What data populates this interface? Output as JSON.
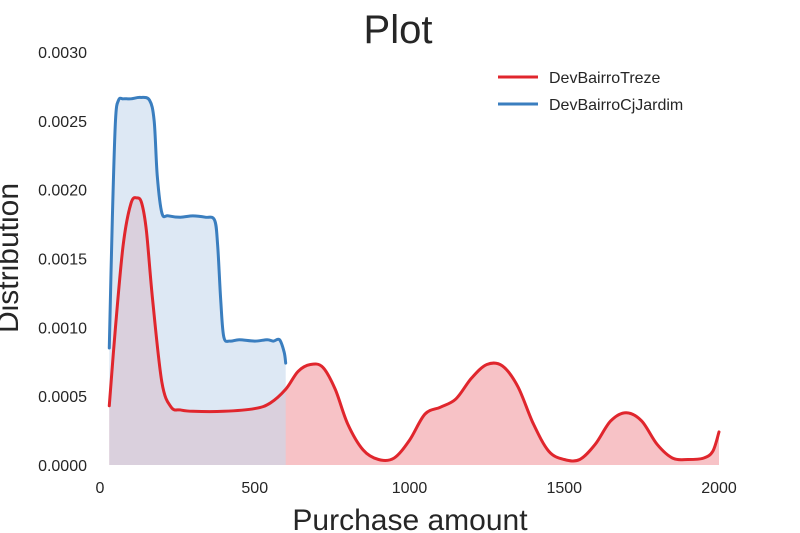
{
  "chart_data": {
    "type": "area",
    "title": "Plot",
    "xlabel": "Purchase amount",
    "ylabel": "Distribution",
    "xlim": [
      0,
      2000
    ],
    "ylim": [
      0,
      0.003
    ],
    "x_ticks": [
      0,
      500,
      1000,
      1500,
      2000
    ],
    "x_tick_labels": [
      "0",
      "500",
      "1000",
      "1500",
      "2000"
    ],
    "y_ticks": [
      0,
      0.0005,
      0.001,
      0.0015,
      0.002,
      0.0025,
      0.003
    ],
    "y_tick_labels": [
      "0.0000",
      "0.0005",
      "0.0010",
      "0.0015",
      "0.0020",
      "0.0025",
      "0.0030"
    ],
    "grid": false,
    "legend_position": "top-right",
    "series": [
      {
        "name": "DevBairroCjJardim",
        "color": "#3a7ebf",
        "fill": "#c6d8ec",
        "x": [
          30,
          40,
          50,
          60,
          75,
          100,
          130,
          160,
          175,
          185,
          200,
          220,
          260,
          300,
          340,
          370,
          380,
          390,
          400,
          420,
          450,
          500,
          540,
          560,
          580,
          595,
          600
        ],
        "y": [
          0.00085,
          0.0018,
          0.0025,
          0.00265,
          0.00266,
          0.00266,
          0.00267,
          0.00265,
          0.0025,
          0.0021,
          0.00183,
          0.00181,
          0.0018,
          0.00181,
          0.0018,
          0.00178,
          0.0016,
          0.0012,
          0.00093,
          0.0009,
          0.00091,
          0.0009,
          0.00091,
          0.0009,
          0.00091,
          0.00082,
          0.00074
        ]
      },
      {
        "name": "DevBairroTreze",
        "color": "#e0262d",
        "fill": "#f29aa0",
        "x": [
          30,
          50,
          75,
          100,
          120,
          135,
          150,
          170,
          200,
          230,
          260,
          300,
          400,
          500,
          550,
          600,
          640,
          680,
          720,
          760,
          800,
          850,
          900,
          950,
          1000,
          1050,
          1100,
          1150,
          1200,
          1250,
          1300,
          1350,
          1400,
          1450,
          1500,
          1550,
          1600,
          1650,
          1700,
          1750,
          1800,
          1850,
          1900,
          1950,
          1980,
          2000
        ],
        "y": [
          0.00043,
          0.001,
          0.0016,
          0.0019,
          0.00194,
          0.0019,
          0.0017,
          0.0012,
          0.0006,
          0.00042,
          0.0004,
          0.00039,
          0.00039,
          0.00041,
          0.00045,
          0.00055,
          0.00068,
          0.00073,
          0.00071,
          0.00055,
          0.0003,
          0.00011,
          4e-05,
          5e-05,
          0.00018,
          0.00037,
          0.00042,
          0.00048,
          0.00063,
          0.00073,
          0.00072,
          0.00057,
          0.0003,
          0.0001,
          4e-05,
          4e-05,
          0.00015,
          0.00032,
          0.00038,
          0.00032,
          0.00015,
          5e-05,
          4e-05,
          5e-05,
          0.0001,
          0.00024
        ]
      }
    ]
  }
}
